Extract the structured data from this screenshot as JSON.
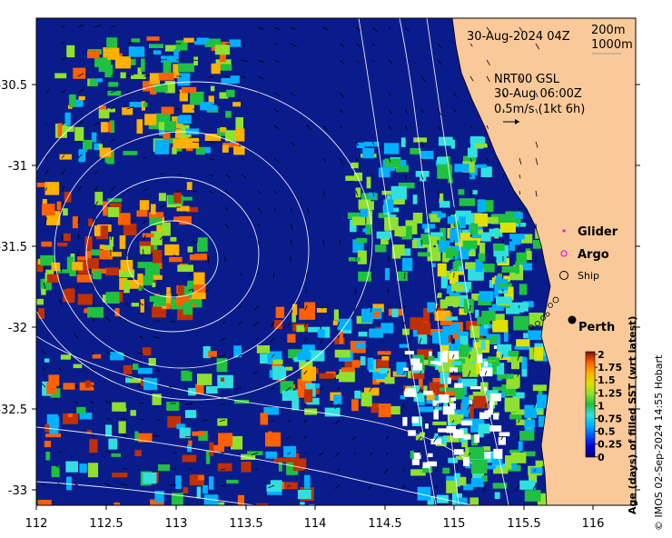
{
  "map": {
    "timestamp": "30-Aug-2024 04Z",
    "contours": {
      "depth_200": "200m",
      "depth_1000": "1000m"
    },
    "currents": {
      "product": "NRT00 GSL",
      "time": "30-Aug 06:00Z",
      "scale": "0.5m/s (1kt 6h)"
    },
    "legend": {
      "glider": "Glider",
      "argo": "Argo",
      "ship": "Ship"
    },
    "city": "Perth",
    "colorbar": {
      "title": "Age (days) of filled SST (wrt latest)",
      "ticks": [
        "2",
        "1.75",
        "1.5",
        "1.25",
        "1",
        "0.75",
        "0.5",
        "0.25",
        "0"
      ],
      "colors": [
        "#00007f",
        "#0000d0",
        "#0050ff",
        "#00b0ff",
        "#30e0e0",
        "#20c040",
        "#90e030",
        "#e0e000",
        "#ffb000",
        "#ff6000",
        "#c03000",
        "#7f1000"
      ]
    },
    "credit": "© IMOS 02-Sep-2024 14:55 Hobart",
    "x_ticks": [
      "112",
      "112.5",
      "113",
      "113.5",
      "114",
      "114.5",
      "115",
      "115.5",
      "116"
    ],
    "y_ticks": [
      "-30.5",
      "-31",
      "-31.5",
      "-32",
      "-32.5",
      "-33"
    ],
    "colors": {
      "ocean_base": "#0a1c8c",
      "land": "#f9c99a",
      "contour": "#ffffff"
    }
  }
}
